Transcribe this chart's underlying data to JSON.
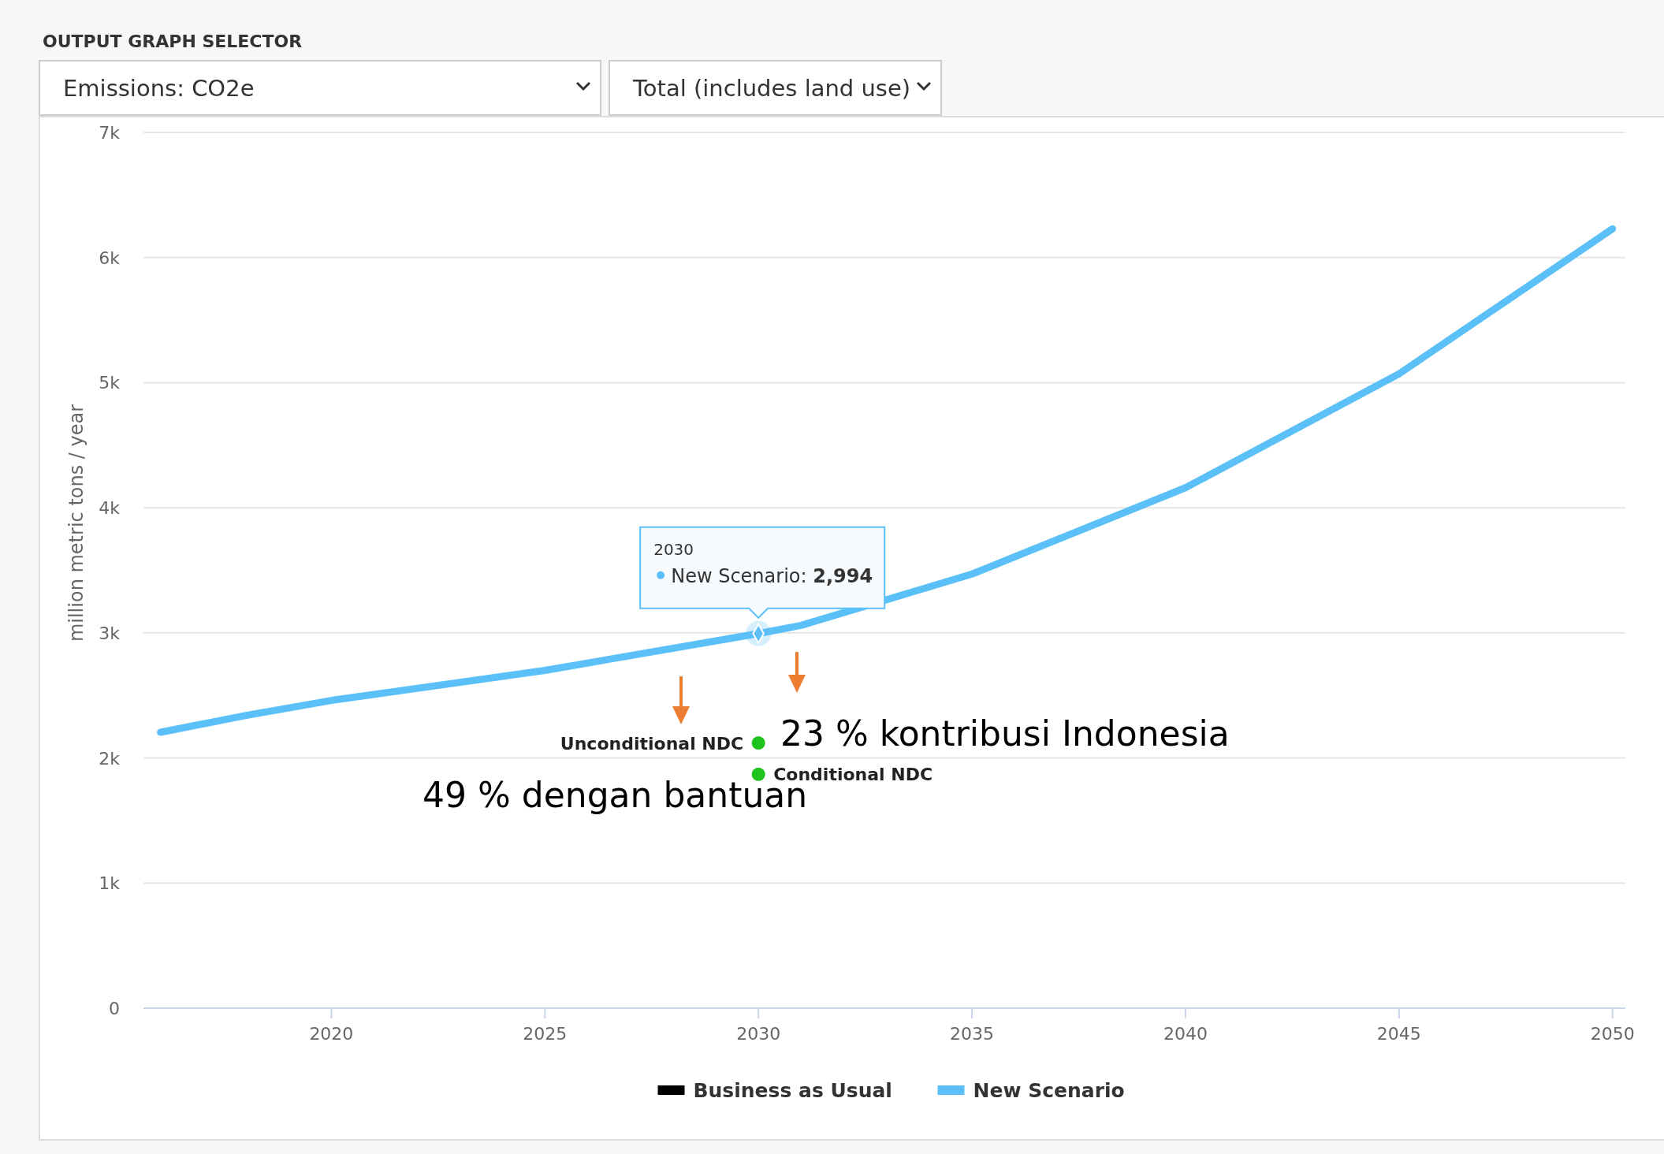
{
  "chart_data": {
    "type": "line",
    "title": "OUTPUT GRAPH SELECTOR",
    "ylabel": "million metric tons / year",
    "x": [
      2016,
      2018,
      2020,
      2025,
      2030,
      2031,
      2035,
      2040,
      2045,
      2050
    ],
    "xlim": [
      2015.6,
      2050.3
    ],
    "xticks": [
      2020,
      2025,
      2030,
      2035,
      2040,
      2045,
      2050
    ],
    "ylim": [
      0,
      7000
    ],
    "yticks": [
      {
        "value": 0,
        "label": "0"
      },
      {
        "value": 1000,
        "label": "1k"
      },
      {
        "value": 2000,
        "label": "2k"
      },
      {
        "value": 3000,
        "label": "3k"
      },
      {
        "value": 4000,
        "label": "4k"
      },
      {
        "value": 5000,
        "label": "5k"
      },
      {
        "value": 6000,
        "label": "6k"
      },
      {
        "value": 7000,
        "label": "7k"
      }
    ],
    "grid": "y",
    "legend": "bottom",
    "series": [
      {
        "name": "Business as Usual",
        "color": "#000000",
        "values": [
          null,
          null,
          null,
          null,
          null,
          null,
          null,
          null,
          null,
          null
        ]
      },
      {
        "name": "New Scenario",
        "color": "#5bc0f8",
        "values": [
          2205,
          2340,
          2460,
          2700,
          2994,
          3060,
          3470,
          4160,
          5070,
          6230
        ]
      },
      {
        "name": "Unconditional NDC",
        "type": "scatter",
        "marker": "circle",
        "color": "#1ec31e",
        "x": [
          2030
        ],
        "values": [
          2120
        ]
      },
      {
        "name": "Conditional NDC",
        "type": "scatter",
        "marker": "circle",
        "color": "#1ec31e",
        "x": [
          2030
        ],
        "values": [
          1870
        ]
      }
    ],
    "annotations": [
      "Emissions: CO2e",
      "Total (includes land use)",
      "2030",
      {
        "text": "New Scenario: 2,994",
        "x": 2030,
        "y": 2994
      },
      "23 % kontribusi Indonesia",
      "49 % dengan bantuan"
    ]
  }
}
